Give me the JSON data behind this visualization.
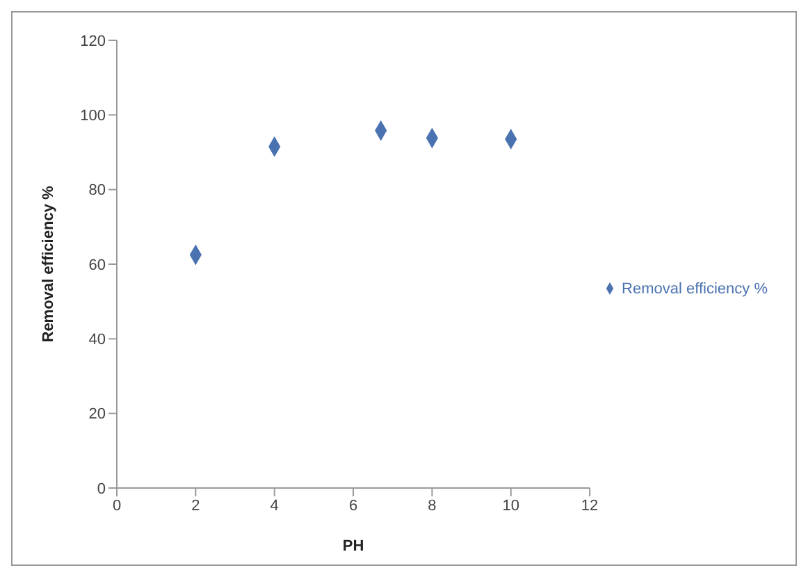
{
  "chart_data": {
    "type": "scatter",
    "xlabel": "PH",
    "ylabel": "Removal efficiency %",
    "x": [
      2,
      4,
      6.7,
      8,
      10
    ],
    "series": [
      {
        "name": "Removal efficiency %",
        "color": "#4a72b0",
        "values": [
          62.5,
          91.5,
          95.8,
          93.8,
          93.5
        ]
      }
    ],
    "xlim": [
      0,
      12
    ],
    "xticks": [
      0,
      2,
      4,
      6,
      8,
      10,
      12
    ],
    "ylim": [
      0,
      120
    ],
    "yticks": [
      0,
      20,
      40,
      60,
      80,
      100,
      120
    ],
    "grid": false,
    "legend": "right",
    "marker": "diamond"
  }
}
